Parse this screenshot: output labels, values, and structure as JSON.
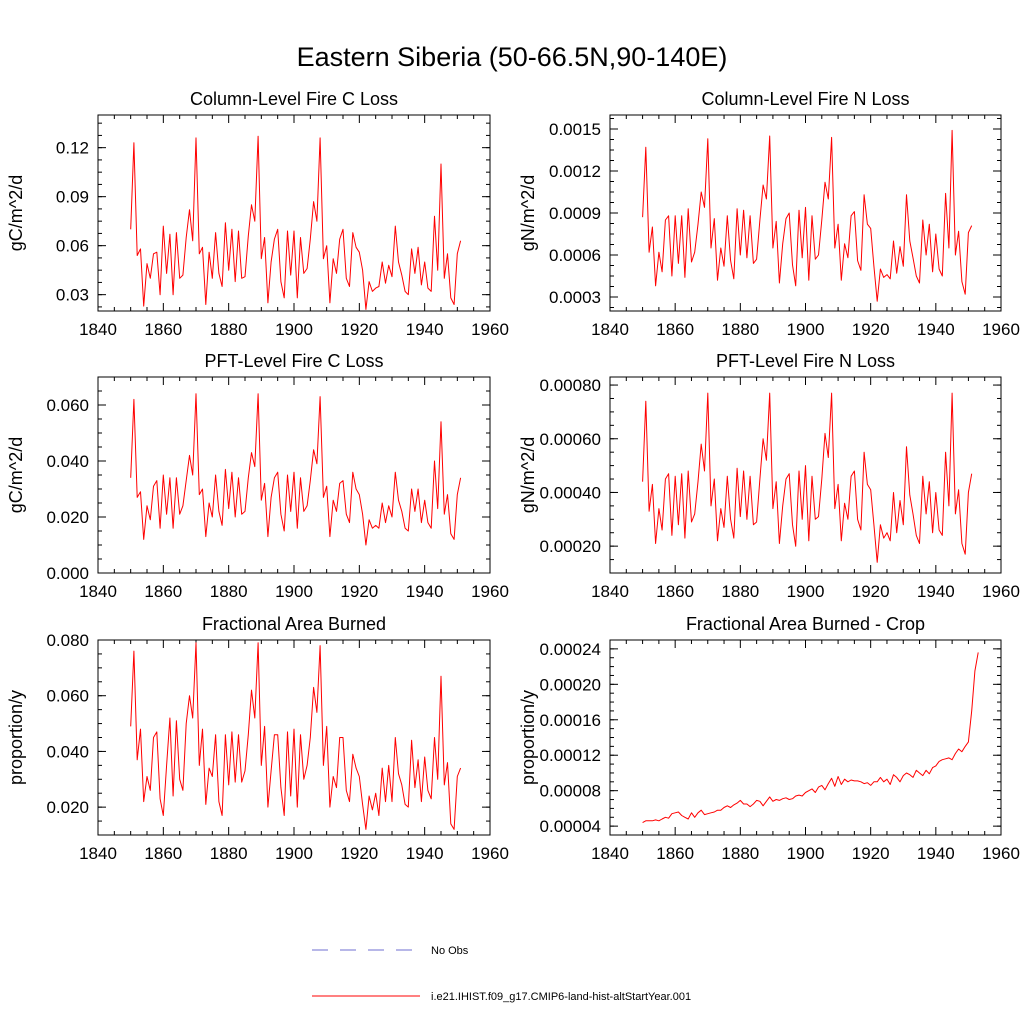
{
  "figure_title": "Eastern Siberia (50-66.5N,90-140E)",
  "colors": {
    "model": "#ff0000",
    "obs": "#6f6fd0",
    "axis": "#000000"
  },
  "legend": {
    "obs_label": "No Obs",
    "model_label": "i.e21.IHIST.f09_g17.CMIP6-land-hist-altStartYear.001"
  },
  "chart_data": [
    {
      "type": "line",
      "title": "Column-Level Fire C Loss",
      "ylabel": "gC/m^2/d",
      "xlabel": "",
      "xlim": [
        1840,
        1960
      ],
      "ylim": [
        0.02,
        0.14
      ],
      "xticks": [
        1840,
        1860,
        1880,
        1900,
        1920,
        1940,
        1960
      ],
      "yticks": [
        0.03,
        0.06,
        0.09,
        0.12
      ],
      "ytick_labels": [
        "0.03",
        "0.06",
        "0.09",
        "0.12"
      ],
      "x_start": 1850,
      "series": [
        {
          "name": "i.e21.IHIST.f09_g17.CMIP6-land-hist-altStartYear.001",
          "values": [
            0.07,
            0.123,
            0.054,
            0.058,
            0.023,
            0.049,
            0.04,
            0.055,
            0.056,
            0.03,
            0.072,
            0.043,
            0.067,
            0.03,
            0.068,
            0.04,
            0.042,
            0.065,
            0.082,
            0.063,
            0.126,
            0.055,
            0.059,
            0.024,
            0.056,
            0.04,
            0.068,
            0.043,
            0.035,
            0.074,
            0.045,
            0.07,
            0.038,
            0.069,
            0.04,
            0.041,
            0.066,
            0.085,
            0.075,
            0.127,
            0.052,
            0.065,
            0.025,
            0.05,
            0.064,
            0.07,
            0.038,
            0.028,
            0.069,
            0.042,
            0.069,
            0.028,
            0.065,
            0.043,
            0.046,
            0.064,
            0.087,
            0.075,
            0.126,
            0.052,
            0.06,
            0.025,
            0.052,
            0.043,
            0.064,
            0.07,
            0.04,
            0.035,
            0.068,
            0.059,
            0.056,
            0.045,
            0.021,
            0.038,
            0.032,
            0.034,
            0.035,
            0.05,
            0.037,
            0.048,
            0.041,
            0.072,
            0.05,
            0.042,
            0.032,
            0.03,
            0.058,
            0.043,
            0.059,
            0.036,
            0.05,
            0.034,
            0.032,
            0.078,
            0.045,
            0.11,
            0.04,
            0.055,
            0.028,
            0.024,
            0.055,
            0.063
          ]
        }
      ]
    },
    {
      "type": "line",
      "title": "Column-Level Fire N Loss",
      "ylabel": "gN/m^2/d",
      "xlabel": "",
      "xlim": [
        1840,
        1960
      ],
      "ylim": [
        0.0002,
        0.0016
      ],
      "xticks": [
        1840,
        1860,
        1880,
        1900,
        1920,
        1940,
        1960
      ],
      "yticks": [
        0.0003,
        0.0006,
        0.0009,
        0.0012,
        0.0015
      ],
      "ytick_labels": [
        "0.0003",
        "0.0006",
        "0.0009",
        "0.0012",
        "0.0015"
      ],
      "x_start": 1850,
      "series": [
        {
          "name": "i.e21.IHIST.f09_g17.CMIP6-land-hist-altStartYear.001",
          "values": [
            0.00087,
            0.00137,
            0.00062,
            0.0008,
            0.00038,
            0.00062,
            0.00048,
            0.00085,
            0.00088,
            0.00045,
            0.00088,
            0.00054,
            0.00088,
            0.00044,
            0.00093,
            0.00055,
            0.00062,
            0.00082,
            0.00105,
            0.00094,
            0.00143,
            0.00065,
            0.00086,
            0.00042,
            0.00065,
            0.00052,
            0.00088,
            0.00056,
            0.00043,
            0.00093,
            0.0006,
            0.00092,
            0.00058,
            0.00088,
            0.00054,
            0.00057,
            0.00085,
            0.0011,
            0.001,
            0.00145,
            0.00065,
            0.00084,
            0.0004,
            0.00068,
            0.00086,
            0.0009,
            0.00053,
            0.00038,
            0.00092,
            0.00058,
            0.00094,
            0.00042,
            0.00088,
            0.00057,
            0.0006,
            0.00085,
            0.00112,
            0.001,
            0.00144,
            0.00065,
            0.00082,
            0.00042,
            0.00068,
            0.00058,
            0.00088,
            0.00091,
            0.00056,
            0.00049,
            0.00103,
            0.00082,
            0.00079,
            0.00052,
            0.00027,
            0.0005,
            0.00044,
            0.00046,
            0.00043,
            0.0007,
            0.00047,
            0.00066,
            0.00052,
            0.00103,
            0.0007,
            0.00058,
            0.00045,
            0.0004,
            0.00085,
            0.0006,
            0.00082,
            0.00048,
            0.00075,
            0.0005,
            0.00045,
            0.00104,
            0.00065,
            0.00149,
            0.0006,
            0.00077,
            0.00041,
            0.00032,
            0.00076,
            0.00081
          ]
        }
      ]
    },
    {
      "type": "line",
      "title": "PFT-Level Fire C Loss",
      "ylabel": "gC/m^2/d",
      "xlabel": "",
      "xlim": [
        1840,
        1960
      ],
      "ylim": [
        0.0,
        0.07
      ],
      "xticks": [
        1840,
        1860,
        1880,
        1900,
        1920,
        1940,
        1960
      ],
      "yticks": [
        0.0,
        0.02,
        0.04,
        0.06
      ],
      "ytick_labels": [
        "0.000",
        "0.020",
        "0.040",
        "0.060"
      ],
      "x_start": 1850,
      "series": [
        {
          "name": "i.e21.IHIST.f09_g17.CMIP6-land-hist-altStartYear.001",
          "values": [
            0.034,
            0.062,
            0.027,
            0.029,
            0.012,
            0.024,
            0.019,
            0.031,
            0.033,
            0.016,
            0.035,
            0.021,
            0.034,
            0.016,
            0.034,
            0.021,
            0.024,
            0.033,
            0.042,
            0.035,
            0.064,
            0.028,
            0.03,
            0.013,
            0.025,
            0.02,
            0.035,
            0.022,
            0.017,
            0.037,
            0.023,
            0.036,
            0.02,
            0.034,
            0.021,
            0.022,
            0.034,
            0.043,
            0.038,
            0.064,
            0.026,
            0.032,
            0.013,
            0.027,
            0.034,
            0.036,
            0.021,
            0.015,
            0.035,
            0.022,
            0.036,
            0.016,
            0.034,
            0.022,
            0.024,
            0.033,
            0.044,
            0.039,
            0.063,
            0.027,
            0.031,
            0.013,
            0.026,
            0.022,
            0.032,
            0.033,
            0.021,
            0.018,
            0.036,
            0.03,
            0.028,
            0.021,
            0.01,
            0.019,
            0.016,
            0.017,
            0.016,
            0.025,
            0.018,
            0.024,
            0.02,
            0.036,
            0.026,
            0.022,
            0.016,
            0.015,
            0.03,
            0.022,
            0.03,
            0.018,
            0.026,
            0.018,
            0.016,
            0.04,
            0.023,
            0.054,
            0.021,
            0.028,
            0.014,
            0.012,
            0.028,
            0.034
          ]
        }
      ]
    },
    {
      "type": "line",
      "title": "PFT-Level Fire N Loss",
      "ylabel": "gN/m^2/d",
      "xlabel": "",
      "xlim": [
        1840,
        1960
      ],
      "ylim": [
        0.0001,
        0.00083
      ],
      "xticks": [
        1840,
        1860,
        1880,
        1900,
        1920,
        1940,
        1960
      ],
      "yticks": [
        0.0002,
        0.0004,
        0.0006,
        0.0008
      ],
      "ytick_labels": [
        "0.00020",
        "0.00040",
        "0.00060",
        "0.00080"
      ],
      "x_start": 1850,
      "series": [
        {
          "name": "i.e21.IHIST.f09_g17.CMIP6-land-hist-altStartYear.001",
          "values": [
            0.00044,
            0.00074,
            0.00033,
            0.00043,
            0.00021,
            0.00034,
            0.00026,
            0.00045,
            0.00047,
            0.00024,
            0.00046,
            0.00028,
            0.00047,
            0.00023,
            0.00048,
            0.00029,
            0.00032,
            0.00044,
            0.00058,
            0.00048,
            0.00077,
            0.00035,
            0.00045,
            0.00022,
            0.00034,
            0.00027,
            0.00046,
            0.0003,
            0.00023,
            0.00049,
            0.00031,
            0.00048,
            0.0003,
            0.00046,
            0.00028,
            0.00029,
            0.00045,
            0.0006,
            0.00052,
            0.00077,
            0.00034,
            0.00044,
            0.00021,
            0.00035,
            0.00045,
            0.00047,
            0.00028,
            0.0002,
            0.00048,
            0.0003,
            0.0005,
            0.00022,
            0.00046,
            0.0003,
            0.00031,
            0.00045,
            0.00062,
            0.00053,
            0.00077,
            0.00034,
            0.00043,
            0.00022,
            0.00036,
            0.0003,
            0.00046,
            0.00048,
            0.0003,
            0.00026,
            0.00055,
            0.00043,
            0.00041,
            0.00028,
            0.00014,
            0.00028,
            0.00023,
            0.00025,
            0.00022,
            0.0004,
            0.00025,
            0.00037,
            0.00028,
            0.00057,
            0.00039,
            0.00032,
            0.00024,
            0.00021,
            0.00046,
            0.00032,
            0.00044,
            0.00025,
            0.0004,
            0.00026,
            0.00024,
            0.00055,
            0.00035,
            0.00077,
            0.00032,
            0.00041,
            0.00021,
            0.00017,
            0.0004,
            0.00047
          ]
        }
      ]
    },
    {
      "type": "line",
      "title": "Fractional Area Burned",
      "ylabel": "proportion/y",
      "xlabel": "",
      "xlim": [
        1840,
        1960
      ],
      "ylim": [
        0.01,
        0.08
      ],
      "xticks": [
        1840,
        1860,
        1880,
        1900,
        1920,
        1940,
        1960
      ],
      "yticks": [
        0.02,
        0.04,
        0.06,
        0.08
      ],
      "ytick_labels": [
        "0.020",
        "0.040",
        "0.060",
        "0.080"
      ],
      "x_start": 1850,
      "series": [
        {
          "name": "i.e21.IHIST.f09_g17.CMIP6-land-hist-altStartYear.001",
          "values": [
            0.049,
            0.076,
            0.037,
            0.048,
            0.022,
            0.031,
            0.026,
            0.045,
            0.047,
            0.023,
            0.017,
            0.035,
            0.052,
            0.024,
            0.051,
            0.03,
            0.026,
            0.05,
            0.06,
            0.052,
            0.079,
            0.035,
            0.048,
            0.021,
            0.034,
            0.031,
            0.046,
            0.022,
            0.017,
            0.046,
            0.028,
            0.047,
            0.029,
            0.046,
            0.029,
            0.033,
            0.046,
            0.062,
            0.052,
            0.079,
            0.035,
            0.049,
            0.02,
            0.033,
            0.046,
            0.046,
            0.027,
            0.017,
            0.047,
            0.024,
            0.048,
            0.02,
            0.046,
            0.03,
            0.035,
            0.045,
            0.063,
            0.054,
            0.078,
            0.035,
            0.049,
            0.02,
            0.031,
            0.027,
            0.045,
            0.045,
            0.026,
            0.022,
            0.039,
            0.034,
            0.031,
            0.021,
            0.012,
            0.024,
            0.019,
            0.025,
            0.017,
            0.034,
            0.022,
            0.035,
            0.022,
            0.045,
            0.032,
            0.028,
            0.021,
            0.02,
            0.044,
            0.027,
            0.037,
            0.022,
            0.038,
            0.026,
            0.023,
            0.045,
            0.03,
            0.067,
            0.028,
            0.036,
            0.014,
            0.012,
            0.031,
            0.034
          ]
        }
      ]
    },
    {
      "type": "line",
      "title": "Fractional Area Burned - Crop",
      "ylabel": "proportion/y",
      "xlabel": "",
      "xlim": [
        1840,
        1960
      ],
      "ylim": [
        3e-05,
        0.00025
      ],
      "xticks": [
        1840,
        1860,
        1880,
        1900,
        1920,
        1940,
        1960
      ],
      "yticks": [
        4e-05,
        8e-05,
        0.00012,
        0.00016,
        0.0002,
        0.00024
      ],
      "ytick_labels": [
        "0.00004",
        "0.00008",
        "0.00012",
        "0.00016",
        "0.00020",
        "0.00024"
      ],
      "x_start": 1850,
      "series": [
        {
          "name": "i.e21.IHIST.f09_g17.CMIP6-land-hist-altStartYear.001",
          "values": [
            4.4e-05,
            4.6e-05,
            4.6e-05,
            4.6e-05,
            4.7e-05,
            4.6e-05,
            4.8e-05,
            5e-05,
            4.9e-05,
            5.4e-05,
            5.5e-05,
            5.6e-05,
            5.2e-05,
            5e-05,
            4.8e-05,
            5.5e-05,
            5e-05,
            5.5e-05,
            5.8e-05,
            5.3e-05,
            5.4e-05,
            5.5e-05,
            5.6e-05,
            5.8e-05,
            5.8e-05,
            6.1e-05,
            6.3e-05,
            6.1e-05,
            6.4e-05,
            6.6e-05,
            6.9e-05,
            6.5e-05,
            6.5e-05,
            6.2e-05,
            6.5e-05,
            6.9e-05,
            6.8e-05,
            6.3e-05,
            6.8e-05,
            7.3e-05,
            6.8e-05,
            7e-05,
            6.9e-05,
            7.1e-05,
            7.2e-05,
            7e-05,
            7.1e-05,
            7.4e-05,
            7.5e-05,
            7.4e-05,
            7.8e-05,
            8e-05,
            8.2e-05,
            7.8e-05,
            8.4e-05,
            8.6e-05,
            8.1e-05,
            8.8e-05,
            9.4e-05,
            8.5e-05,
            9.6e-05,
            8.7e-05,
            9.3e-05,
            9e-05,
            9.2e-05,
            9.1e-05,
            9.1e-05,
            9e-05,
            8.8e-05,
            8.9e-05,
            8.6e-05,
            9e-05,
            9e-05,
            9.5e-05,
            9e-05,
            9.3e-05,
            8.7e-05,
            9.8e-05,
            9.5e-05,
            9e-05,
            9.7e-05,
            0.0001,
            9.8e-05,
            9.5e-05,
            0.000103,
            0.0001,
            9.7e-05,
            0.000103,
            9.9e-05,
            0.000106,
            0.000108,
            0.000113,
            0.000115,
            0.000116,
            0.000117,
            0.000115,
            0.000122,
            0.000127,
            0.000124,
            0.00013,
            0.000135,
            0.00017,
            0.000215,
            0.000236
          ]
        }
      ]
    }
  ]
}
